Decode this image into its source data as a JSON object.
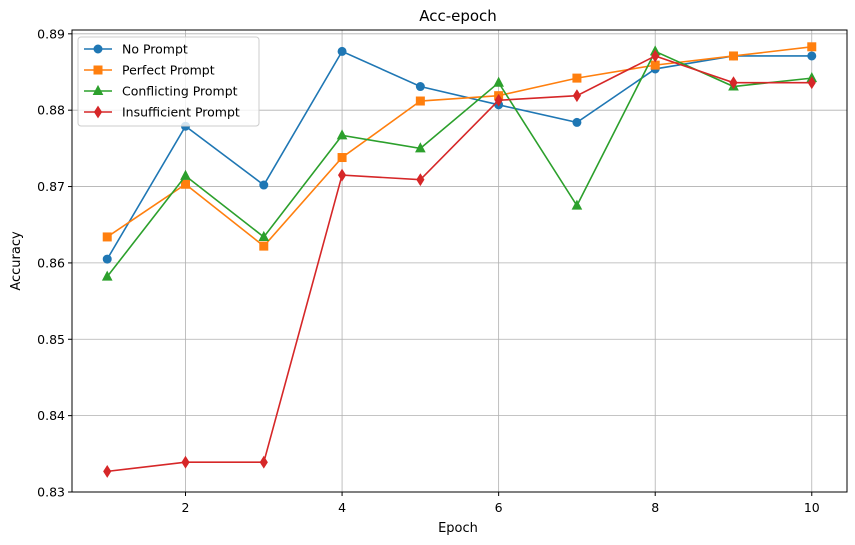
{
  "chart_data": {
    "type": "line",
    "title": "Acc-epoch",
    "xlabel": "Epoch",
    "ylabel": "Accuracy",
    "xlim": [
      0.55,
      10.45
    ],
    "ylim": [
      0.83,
      0.8905
    ],
    "xticks": [
      2,
      4,
      6,
      8,
      10
    ],
    "xtick_labels": [
      "2",
      "4",
      "6",
      "8",
      "10"
    ],
    "yticks": [
      0.83,
      0.84,
      0.85,
      0.86,
      0.87,
      0.88,
      0.89
    ],
    "ytick_labels": [
      "0.83",
      "0.84",
      "0.85",
      "0.86",
      "0.87",
      "0.88",
      "0.89"
    ],
    "grid": true,
    "legend_position": "top-left",
    "x": [
      1,
      2,
      3,
      4,
      5,
      6,
      7,
      8,
      9,
      10
    ],
    "series": [
      {
        "name": "No Prompt",
        "color": "#1f77b4",
        "marker": "circle",
        "values": [
          0.8605,
          0.8779,
          0.8702,
          0.8877,
          0.8831,
          0.8807,
          0.8784,
          0.8854,
          0.8871,
          0.8871
        ]
      },
      {
        "name": "Perfect Prompt",
        "color": "#ff7f0e",
        "marker": "square",
        "values": [
          0.8634,
          0.8703,
          0.8622,
          0.8738,
          0.8812,
          0.8819,
          0.8842,
          0.8859,
          0.8871,
          0.8883
        ]
      },
      {
        "name": "Conflicting Prompt",
        "color": "#2ca02c",
        "marker": "triangle",
        "values": [
          0.8582,
          0.8714,
          0.8634,
          0.8767,
          0.875,
          0.8836,
          0.8675,
          0.8877,
          0.8831,
          0.8842
        ]
      },
      {
        "name": "Insufficient Prompt",
        "color": "#d62728",
        "marker": "diamond",
        "values": [
          0.8327,
          0.8339,
          0.8339,
          0.8715,
          0.8709,
          0.8813,
          0.8819,
          0.8871,
          0.8836,
          0.8836
        ]
      }
    ]
  }
}
